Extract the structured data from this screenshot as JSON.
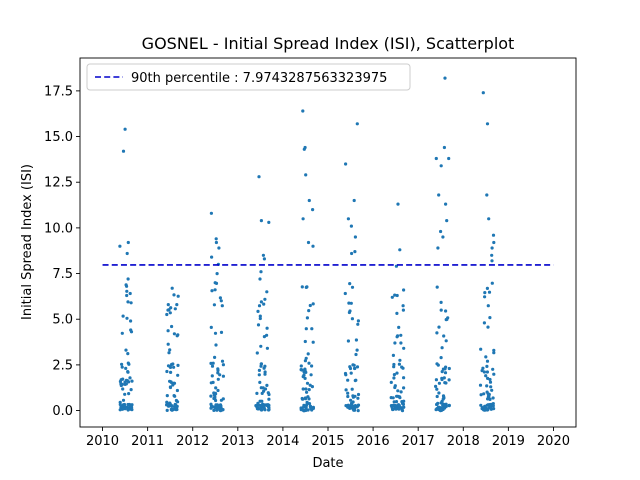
{
  "chart_data": {
    "type": "scatter",
    "title": "GOSNEL - Initial Spread Index (ISI), Scatterplot",
    "xlabel": "Date",
    "ylabel": "Initial Spread Index (ISI)",
    "xlim": [
      2009.5,
      2020.5
    ],
    "ylim": [
      -0.9,
      19.3
    ],
    "xticks": [
      "2010",
      "2011",
      "2012",
      "2013",
      "2014",
      "2015",
      "2016",
      "2017",
      "2018",
      "2019",
      "2020"
    ],
    "yticks": [
      "0.0",
      "2.5",
      "5.0",
      "7.5",
      "10.0",
      "12.5",
      "15.0",
      "17.5"
    ],
    "grid": false,
    "legend_placement": "upper-left",
    "reference_line": {
      "label": "90th percentile : 7.9743287563323975",
      "value": 7.9743287563323975,
      "x_range": [
        2010,
        2020
      ],
      "color": "#0000cc",
      "style": "dashed"
    },
    "series": [
      {
        "color": "#1f77b4",
        "seasons": [
          {
            "year": 2010,
            "start": 2010.38,
            "end": 2010.66,
            "max_value": 15.4,
            "high_values": [
              15.4,
              14.2,
              9.2,
              9.0,
              8.6,
              7.2,
              6.8,
              6.3
            ]
          },
          {
            "year": 2011,
            "start": 2011.42,
            "end": 2011.68,
            "max_value": 6.7,
            "high_values": [
              6.7,
              5.8,
              5.8,
              4.6,
              4.2
            ]
          },
          {
            "year": 2012,
            "start": 2012.4,
            "end": 2012.68,
            "max_value": 10.8,
            "high_values": [
              10.8,
              9.4,
              9.2,
              8.9,
              8.4,
              8.0,
              7.5,
              7.0
            ]
          },
          {
            "year": 2013,
            "start": 2013.4,
            "end": 2013.7,
            "max_value": 12.8,
            "high_values": [
              12.8,
              10.4,
              10.3,
              8.5,
              8.3,
              7.6,
              7.2,
              6.5
            ]
          },
          {
            "year": 2014,
            "start": 2014.4,
            "end": 2014.68,
            "max_value": 16.4,
            "high_values": [
              16.4,
              14.4,
              14.3,
              12.9,
              11.5,
              11.0,
              10.5,
              9.2,
              9.0
            ]
          },
          {
            "year": 2015,
            "start": 2015.38,
            "end": 2015.68,
            "max_value": 15.7,
            "high_values": [
              15.7,
              13.5,
              11.5,
              10.5,
              10.1,
              9.5,
              8.7,
              8.6
            ]
          },
          {
            "year": 2016,
            "start": 2016.4,
            "end": 2016.68,
            "max_value": 11.3,
            "high_values": [
              11.3,
              8.8,
              7.9,
              6.6,
              6.2
            ]
          },
          {
            "year": 2017,
            "start": 2017.38,
            "end": 2017.7,
            "max_value": 18.2,
            "high_values": [
              18.2,
              14.4,
              13.8,
              13.8,
              13.4,
              11.8,
              11.3,
              10.4,
              9.8,
              9.5,
              8.9
            ]
          },
          {
            "year": 2018,
            "start": 2018.38,
            "end": 2018.68,
            "max_value": 17.4,
            "high_values": [
              17.4,
              15.7,
              11.8,
              10.5,
              9.6,
              9.2,
              8.9,
              8.5,
              8.2
            ]
          }
        ]
      }
    ]
  }
}
